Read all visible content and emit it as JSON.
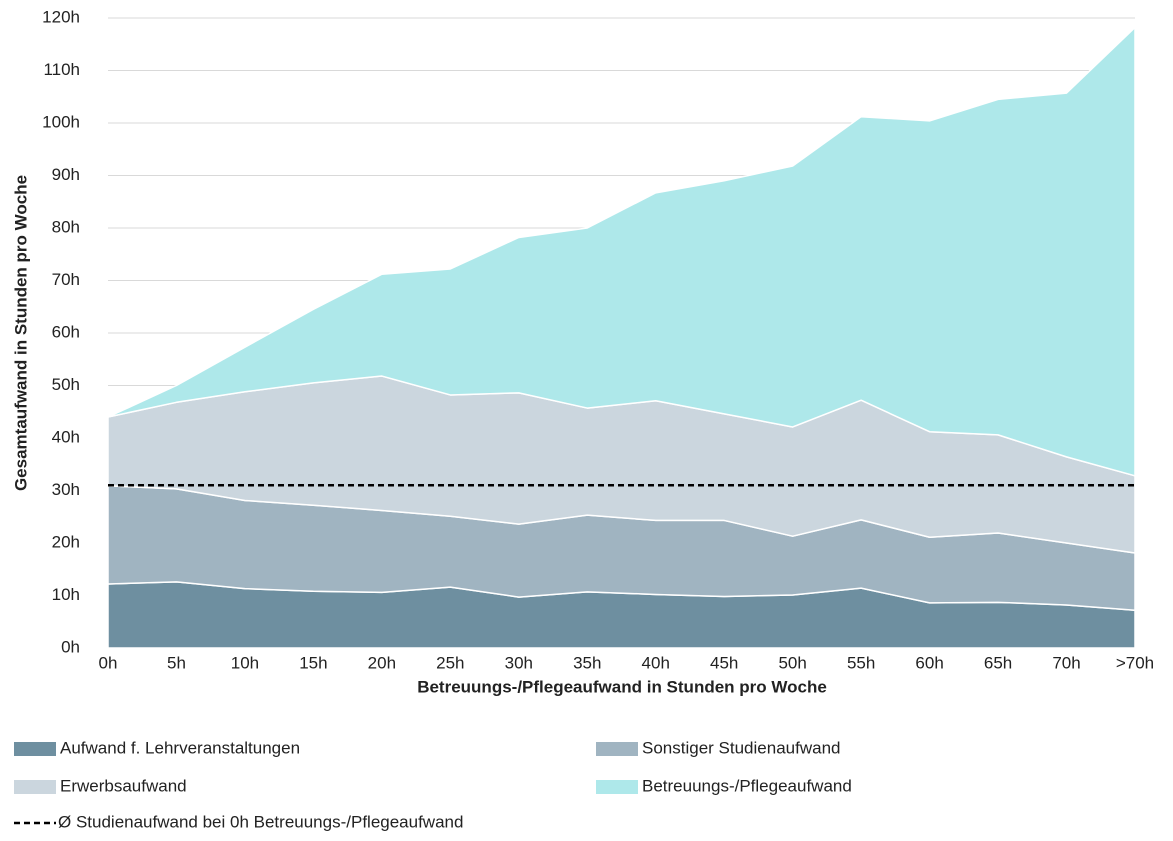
{
  "chart_data": {
    "type": "stacked_area",
    "x_label": "Betreuungs-/Pflegeaufwand in Stunden pro Woche",
    "y_label": "Gesamtaufwand in Stunden pro Woche",
    "categories": [
      "0h",
      "5h",
      "10h",
      "15h",
      "20h",
      "25h",
      "30h",
      "35h",
      "40h",
      "45h",
      "50h",
      "55h",
      "60h",
      "65h",
      "70h",
      ">70h"
    ],
    "series": [
      {
        "name": "Aufwand f. Lehrveranstaltungen",
        "color": "#6e8fa0",
        "values": [
          12.2,
          12.6,
          11.3,
          10.8,
          10.6,
          11.6,
          9.7,
          10.7,
          10.2,
          9.8,
          10.1,
          11.4,
          8.6,
          8.7,
          8.2,
          7.2
        ]
      },
      {
        "name": "Sonstiger Studienaufwand",
        "color": "#a0b4c1",
        "values": [
          18.7,
          17.7,
          16.8,
          16.4,
          15.6,
          13.5,
          13.9,
          14.6,
          14.1,
          14.5,
          11.2,
          13.0,
          12.5,
          13.2,
          11.8,
          10.9
        ]
      },
      {
        "name": "Erwerbsaufwand",
        "color": "#cbd6de",
        "values": [
          13.1,
          16.5,
          20.7,
          23.3,
          25.6,
          23.1,
          25.0,
          20.4,
          22.8,
          20.3,
          20.8,
          22.8,
          20.1,
          18.7,
          16.4,
          14.7
        ]
      },
      {
        "name": "Betreuungs-/Pflegeaufwand",
        "color": "#aee8ea",
        "values": [
          0,
          3.2,
          8.5,
          14.0,
          19.4,
          24.0,
          29.6,
          34.3,
          39.6,
          44.4,
          49.7,
          54.0,
          59.2,
          63.9,
          69.3,
          85.4
        ]
      }
    ],
    "reference_line": {
      "label": "Ø Studienaufwand bei 0h Betreuungs-/Pflegeaufwand",
      "value": 31,
      "color": "#000000"
    },
    "ylim": [
      0,
      120
    ],
    "yticks": [
      {
        "value": 0,
        "label": "0h"
      },
      {
        "value": 10,
        "label": "10h"
      },
      {
        "value": 20,
        "label": "20h"
      },
      {
        "value": 30,
        "label": "30h"
      },
      {
        "value": 40,
        "label": "40h"
      },
      {
        "value": 50,
        "label": "50h"
      },
      {
        "value": 60,
        "label": "60h"
      },
      {
        "value": 70,
        "label": "70h"
      },
      {
        "value": 80,
        "label": "80h"
      },
      {
        "value": 90,
        "label": "90h"
      },
      {
        "value": 100,
        "label": "100h"
      },
      {
        "value": 110,
        "label": "110h"
      },
      {
        "value": 120,
        "label": "120h"
      }
    ],
    "grid": true
  }
}
